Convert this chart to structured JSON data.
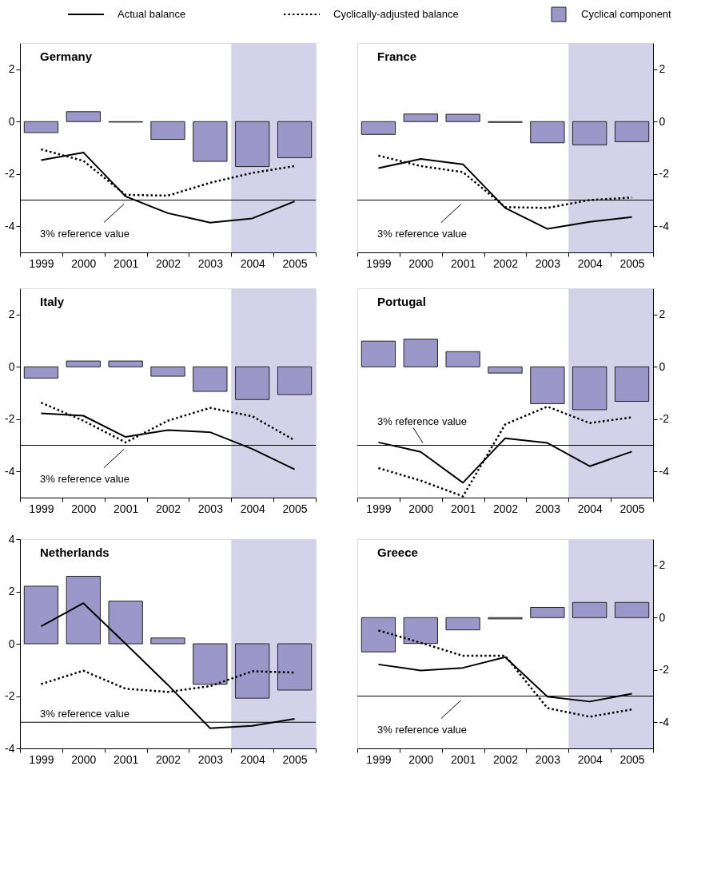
{
  "chart_data": [
    {
      "type": "bar",
      "title": "Germany",
      "categories": [
        "1999",
        "2000",
        "2001",
        "2002",
        "2003",
        "2004",
        "2005"
      ],
      "legend": "top",
      "grid": false,
      "ylim": [
        -5,
        3
      ],
      "yticks": [
        -4,
        -2,
        0,
        2
      ],
      "series": [
        {
          "name": "Actual balance",
          "type": "line",
          "line_style": "solid",
          "color": "#000000",
          "values": [
            -1.47,
            -1.18,
            -2.86,
            -3.5,
            -3.86,
            -3.7,
            -3.05
          ]
        },
        {
          "name": "Cyclically-adjusted balance",
          "type": "line",
          "line_style": "dotted",
          "color": "#000000",
          "values": [
            -1.06,
            -1.5,
            -2.8,
            -2.83,
            -2.34,
            -1.96,
            -1.7
          ]
        },
        {
          "name": "Cyclical component",
          "color": "#9b98c9",
          "values": [
            -0.42,
            0.38,
            -0.02,
            -0.68,
            -1.52,
            -1.72,
            -1.38
          ]
        }
      ],
      "ref_lines": [
        {
          "axis": "y",
          "value": -3,
          "label": "3% reference value",
          "color": "#000000"
        }
      ],
      "bands": [
        {
          "axis": "x",
          "from": "2004",
          "to": "2005",
          "color": "#d3d2e8"
        }
      ]
    },
    {
      "type": "bar",
      "title": "France",
      "categories": [
        "1999",
        "2000",
        "2001",
        "2002",
        "2003",
        "2004",
        "2005"
      ],
      "grid": false,
      "ylim": [
        -5,
        3
      ],
      "yticks": [
        -4,
        -2,
        0,
        2
      ],
      "series": [
        {
          "color": "#9b98c9",
          "values": [
            -0.49,
            0.29,
            0.28,
            -0.03,
            -0.81,
            -0.89,
            -0.77
          ]
        },
        {
          "type": "line",
          "line_style": "solid",
          "color": "#000000",
          "values": [
            -1.78,
            -1.43,
            -1.63,
            -3.3,
            -4.1,
            -3.83,
            -3.65
          ]
        },
        {
          "type": "line",
          "line_style": "dotted",
          "color": "#000000",
          "values": [
            -1.3,
            -1.7,
            -1.93,
            -3.27,
            -3.3,
            -3.0,
            -2.9
          ]
        }
      ],
      "ref_lines": [
        {
          "axis": "y",
          "value": -3,
          "label": "3% reference value",
          "color": "#000000"
        }
      ],
      "bands": [
        {
          "axis": "x",
          "from": "2004",
          "to": "2005",
          "color": "#d3d2e8"
        }
      ]
    },
    {
      "type": "bar",
      "title": "Italy",
      "categories": [
        "1999",
        "2000",
        "2001",
        "2002",
        "2003",
        "2004",
        "2005"
      ],
      "grid": false,
      "ylim": [
        -5,
        3
      ],
      "yticks": [
        -4,
        -2,
        0,
        2
      ],
      "series": [
        {
          "color": "#9b98c9",
          "values": [
            -0.43,
            0.22,
            0.22,
            -0.36,
            -0.94,
            -1.25,
            -1.06
          ]
        },
        {
          "type": "line",
          "line_style": "solid",
          "color": "#000000",
          "values": [
            -1.78,
            -1.87,
            -2.68,
            -2.42,
            -2.5,
            -3.14,
            -3.92
          ]
        },
        {
          "type": "line",
          "line_style": "dotted",
          "color": "#000000",
          "values": [
            -1.37,
            -2.06,
            -2.89,
            -2.06,
            -1.57,
            -1.89,
            -2.81
          ]
        }
      ],
      "ref_lines": [
        {
          "axis": "y",
          "value": -3,
          "label": "3% reference value",
          "color": "#000000"
        }
      ],
      "bands": [
        {
          "axis": "x",
          "from": "2004",
          "to": "2005",
          "color": "#d3d2e8"
        }
      ]
    },
    {
      "type": "bar",
      "title": "Portugal",
      "categories": [
        "1999",
        "2000",
        "2001",
        "2002",
        "2003",
        "2004",
        "2005"
      ],
      "grid": false,
      "ylim": [
        -5,
        3
      ],
      "yticks": [
        -4,
        -2,
        0,
        2
      ],
      "series": [
        {
          "color": "#9b98c9",
          "values": [
            0.98,
            1.06,
            0.58,
            -0.24,
            -1.41,
            -1.64,
            -1.32
          ]
        },
        {
          "type": "line",
          "line_style": "solid",
          "color": "#000000",
          "values": [
            -2.89,
            -3.25,
            -4.43,
            -2.73,
            -2.91,
            -3.8,
            -3.24
          ]
        },
        {
          "type": "line",
          "line_style": "dotted",
          "color": "#000000",
          "values": [
            -3.87,
            -4.35,
            -4.95,
            -2.2,
            -1.52,
            -2.15,
            -1.93
          ]
        }
      ],
      "ref_lines": [
        {
          "axis": "y",
          "value": -3,
          "label": "3% reference value",
          "color": "#000000"
        }
      ],
      "bands": [
        {
          "axis": "x",
          "from": "2004",
          "to": "2005",
          "color": "#d3d2e8"
        }
      ]
    },
    {
      "type": "bar",
      "title": "Netherlands",
      "categories": [
        "1999",
        "2000",
        "2001",
        "2002",
        "2003",
        "2004",
        "2005"
      ],
      "grid": false,
      "ylim": [
        -4,
        4
      ],
      "yticks": [
        -4,
        -2,
        0,
        2,
        4
      ],
      "series": [
        {
          "color": "#9b98c9",
          "values": [
            2.2,
            2.58,
            1.63,
            0.22,
            -1.55,
            -2.08,
            -1.77
          ]
        },
        {
          "type": "line",
          "line_style": "solid",
          "color": "#000000",
          "values": [
            0.67,
            1.55,
            0.0,
            -1.57,
            -3.23,
            -3.14,
            -2.87
          ]
        },
        {
          "type": "line",
          "line_style": "dotted",
          "color": "#000000",
          "values": [
            -1.54,
            -1.03,
            -1.72,
            -1.84,
            -1.62,
            -1.05,
            -1.1
          ]
        }
      ],
      "ref_lines": [
        {
          "axis": "y",
          "value": -3,
          "label": "3% reference value",
          "color": "#000000"
        }
      ],
      "bands": [
        {
          "axis": "x",
          "from": "2004",
          "to": "2005",
          "color": "#d3d2e8"
        }
      ]
    },
    {
      "type": "bar",
      "title": "Greece",
      "categories": [
        "1999",
        "2000",
        "2001",
        "2002",
        "2003",
        "2004",
        "2005"
      ],
      "grid": false,
      "ylim": [
        -5,
        3
      ],
      "yticks": [
        -4,
        -2,
        0,
        2
      ],
      "series": [
        {
          "color": "#9b98c9",
          "values": [
            -1.31,
            -0.99,
            -0.47,
            -0.05,
            0.39,
            0.58,
            0.58
          ]
        },
        {
          "type": "line",
          "line_style": "solid",
          "color": "#000000",
          "values": [
            -1.79,
            -2.02,
            -1.92,
            -1.51,
            -3.02,
            -3.21,
            -2.91
          ]
        },
        {
          "type": "line",
          "line_style": "dotted",
          "color": "#000000",
          "values": [
            -0.49,
            -0.96,
            -1.46,
            -1.46,
            -3.46,
            -3.79,
            -3.51
          ]
        }
      ],
      "ref_lines": [
        {
          "axis": "y",
          "value": -3,
          "label": "3% reference value",
          "color": "#000000"
        }
      ],
      "bands": [
        {
          "axis": "x",
          "from": "2004",
          "to": "2005",
          "color": "#d3d2e8"
        }
      ]
    }
  ]
}
